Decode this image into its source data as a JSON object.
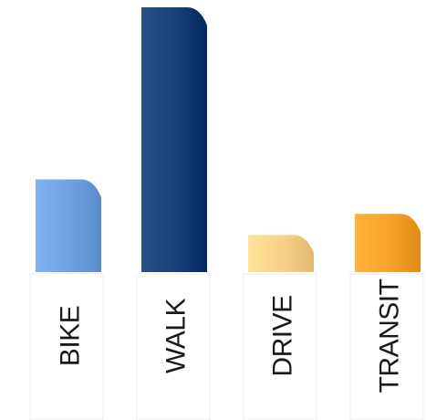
{
  "chart_data": {
    "type": "bar",
    "title": "",
    "xlabel": "",
    "ylabel": "",
    "categories": [
      "BIKE",
      "WALK",
      "DRIVE",
      "TRANSIT"
    ],
    "values": [
      35,
      100,
      14,
      22
    ],
    "ylim": [
      0,
      100
    ],
    "colors": [
      "#6fa0df",
      "#183e78",
      "#f7cf86",
      "#f7a12b"
    ],
    "grid": false,
    "legend": "none"
  }
}
